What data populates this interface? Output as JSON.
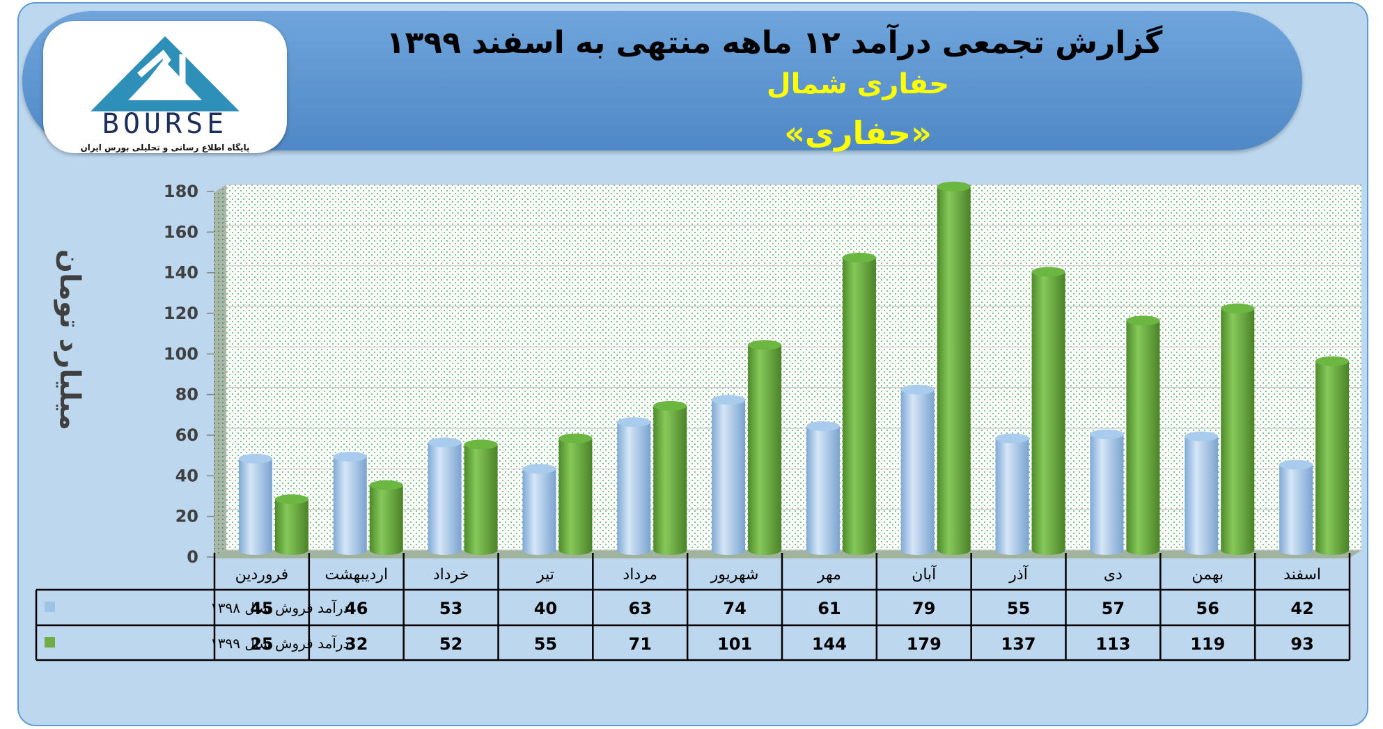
{
  "header": {
    "title": "گزارش تجمعی درآمد ۱۲ ماهه منتهی به اسفند ۱۳۹۹",
    "company": "حفاری شمال",
    "symbol": "«حفاری»"
  },
  "logo": {
    "word": "BOURSE",
    "tagline": "پایگاه اطلاع رسانی و تحلیلی بورس ایران"
  },
  "colors": {
    "series_1398": "#9dc3e6",
    "series_1399": "#70ad47",
    "frame": "#bdd7ee",
    "banner": "#5b9bd5"
  },
  "chart_data": {
    "type": "bar",
    "ylabel": "میلیارد تومان",
    "ylim": [
      0,
      180
    ],
    "yticks": [
      0,
      20,
      40,
      60,
      80,
      100,
      120,
      140,
      160,
      180
    ],
    "categories": [
      "فروردین",
      "اردیبهشت",
      "خرداد",
      "تیر",
      "مرداد",
      "شهریور",
      "مهر",
      "آبان",
      "آذر",
      "دی",
      "بهمن",
      "اسفند"
    ],
    "series": [
      {
        "name": "درآمد فروش سال ۱۳۹۸",
        "color": "#9dc3e6",
        "values": [
          45,
          46,
          53,
          40,
          63,
          74,
          61,
          79,
          55,
          57,
          56,
          42
        ]
      },
      {
        "name": "درآمد فروش سال ۱۳۹۹",
        "color": "#70ad47",
        "values": [
          25,
          32,
          52,
          55,
          71,
          101,
          144,
          179,
          137,
          113,
          119,
          93
        ]
      }
    ],
    "grid": true,
    "legend": "table-left"
  }
}
